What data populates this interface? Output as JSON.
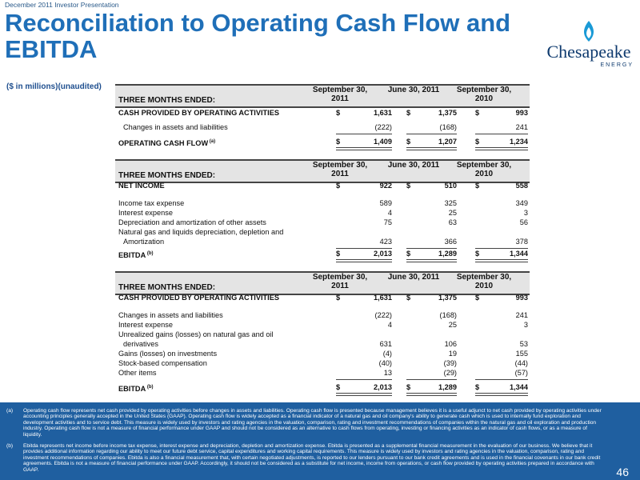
{
  "header": {
    "event": "December 2011 Investor Presentation",
    "title": "Reconciliation to Operating Cash Flow and EBITDA",
    "units": "($ in millions)(unaudited)",
    "logo_name": "Chesapeake",
    "logo_sub": "ENERGY"
  },
  "columns": [
    "September 30, 2011",
    "June 30, 2011",
    "September 30, 2010"
  ],
  "tables": [
    {
      "heading": "THREE MONTHS ENDED:",
      "rows": [
        {
          "label": "CASH PROVIDED BY OPERATING ACTIVITIES",
          "values": [
            "1,631",
            "1,375",
            "993"
          ],
          "dollar": true
        },
        {
          "label": "Changes in assets and liabilities",
          "values": [
            "(222)",
            "(168)",
            "241"
          ]
        },
        {
          "label": "OPERATING CASH FLOW",
          "note": "(a)",
          "values": [
            "1,409",
            "1,207",
            "1,234"
          ],
          "dollar": true
        }
      ]
    },
    {
      "heading": "THREE MONTHS ENDED:",
      "rows": [
        {
          "label": "NET INCOME",
          "values": [
            "922",
            "510",
            "558"
          ],
          "dollar": true
        },
        {
          "label": "Income tax expense",
          "values": [
            "589",
            "325",
            "349"
          ]
        },
        {
          "label": "Interest expense",
          "values": [
            "4",
            "25",
            "3"
          ]
        },
        {
          "label": "Depreciation and amortization of other assets",
          "values": [
            "75",
            "63",
            "56"
          ]
        },
        {
          "label": "Natural gas and liquids depreciation, depletion and",
          "values": [
            "",
            "",
            ""
          ]
        },
        {
          "label": "Amortization",
          "values": [
            "423",
            "366",
            "378"
          ]
        },
        {
          "label": "EBITDA",
          "note": "(b)",
          "values": [
            "2,013",
            "1,289",
            "1,344"
          ],
          "dollar": true
        }
      ]
    },
    {
      "heading": "THREE MONTHS ENDED:",
      "rows": [
        {
          "label": "CASH PROVIDED BY OPERATING ACTIVITIES",
          "values": [
            "1,631",
            "1,375",
            "993"
          ],
          "dollar": true
        },
        {
          "label": "Changes in assets and liabilities",
          "values": [
            "(222)",
            "(168)",
            "241"
          ]
        },
        {
          "label": "Interest expense",
          "values": [
            "4",
            "25",
            "3"
          ]
        },
        {
          "label": "Unrealized gains (losses) on natural gas and oil",
          "values": [
            "",
            "",
            ""
          ]
        },
        {
          "label": "derivatives",
          "values": [
            "631",
            "106",
            "53"
          ]
        },
        {
          "label": "Gains (losses) on investments",
          "values": [
            "(4)",
            "19",
            "155"
          ]
        },
        {
          "label": "Stock-based compensation",
          "values": [
            "(40)",
            "(39)",
            "(44)"
          ]
        },
        {
          "label": "Other items",
          "values": [
            "13",
            "(29)",
            "(57)"
          ]
        },
        {
          "label": "EBITDA",
          "note": "(b)",
          "values": [
            "2,013",
            "1,289",
            "1,344"
          ],
          "dollar": true
        }
      ]
    }
  ],
  "dollar_sign": "$",
  "footnotes": [
    {
      "key": "(a)",
      "text": "Operating cash flow represents net cash provided by operating activities before changes in assets and liabilities. Operating cash flow is presented because management believes it is a useful adjunct to net cash provided by operating activities under accounting principles generally accepted in the United States (GAAP). Operating cash flow is widely accepted as a financial indicator of a natural gas and oil company's ability to generate cash which is used to internally fund exploration and development activities and to service debt. This measure is widely used by investors and rating agencies in the valuation, comparison, rating and investment recommendations of companies within the natural gas and oil exploration and production industry. Operating cash flow is not a measure of financial performance under GAAP and should not be considered as an alternative to cash flows from operating, investing or financing activities as an indicator of cash flows, or as a measure of liquidity."
    },
    {
      "key": "(b)",
      "text": "Ebitda represents net income before income tax expense, interest expense and depreciation, depletion and amortization expense. Ebitda is presented as a supplemental financial measurement in the evaluation of our business. We believe that it provides additional information regarding our ability to meet our future debt service, capital expenditures and working capital requirements. This measure is widely used by investors and rating agencies in the valuation, comparison, rating and investment recommendations of companies. Ebitda is also a financial measurement that, with certain negotiated adjustments, is reported to our lenders pursuant to our bank credit agreements and is used in the financial covenants in our bank credit agreements. Ebitda is not a measure of financial performance under GAAP. Accordingly, it should not be considered as a substitute for net income, income from operations, or cash flow provided by operating activities prepared in accordance with GAAP."
    }
  ],
  "page_number": "46",
  "colors": {
    "title": "#1f6fb8",
    "footer": "#1f5fa0",
    "logo_flame": "#1a9ad6"
  }
}
